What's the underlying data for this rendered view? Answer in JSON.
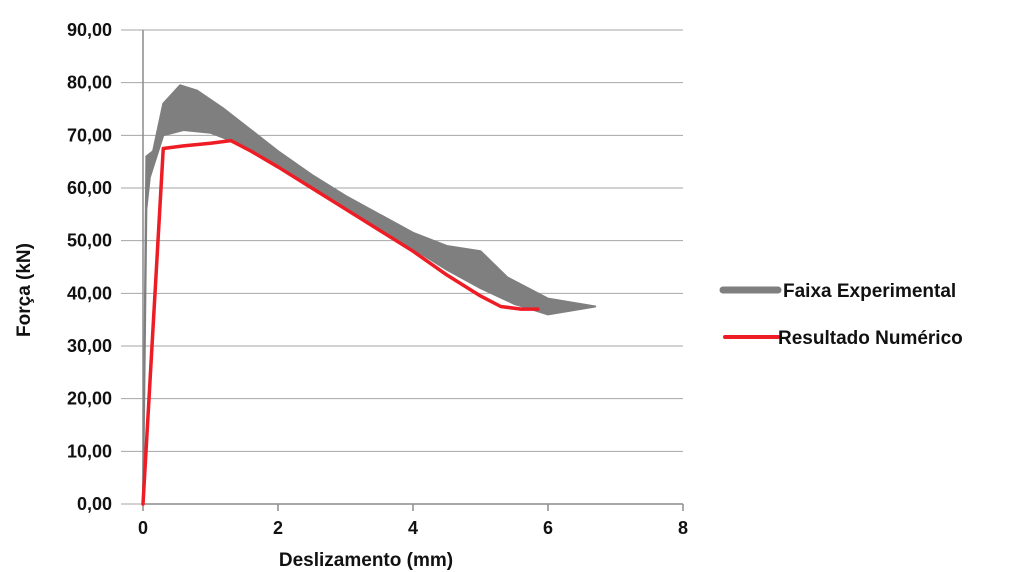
{
  "chart_data": {
    "type": "line",
    "title": "",
    "xlabel": "Deslizamento (mm)",
    "ylabel": "Força (kN)",
    "xlim": [
      0,
      8
    ],
    "ylim": [
      0,
      90
    ],
    "x_ticks": [
      "0",
      "2",
      "4",
      "6",
      "8"
    ],
    "y_ticks": [
      "0,00",
      "10,00",
      "20,00",
      "30,00",
      "40,00",
      "50,00",
      "60,00",
      "70,00",
      "80,00",
      "90,00"
    ],
    "grid": "horizontal",
    "legend_position": "right",
    "series": [
      {
        "name": "Faixa Experimental",
        "type": "band",
        "color": "#7f7f7f",
        "upper": [
          [
            0,
            0
          ],
          [
            0.05,
            66
          ],
          [
            0.15,
            67
          ],
          [
            0.3,
            76
          ],
          [
            0.55,
            79.5
          ],
          [
            0.8,
            78.5
          ],
          [
            1.2,
            75
          ],
          [
            1.6,
            71
          ],
          [
            2.0,
            67
          ],
          [
            2.5,
            62.5
          ],
          [
            3.0,
            58.5
          ],
          [
            3.5,
            55
          ],
          [
            4.0,
            51.5
          ],
          [
            4.5,
            49
          ],
          [
            5.0,
            48
          ],
          [
            5.4,
            43
          ],
          [
            6.0,
            39
          ],
          [
            6.7,
            37.5
          ]
        ],
        "lower": [
          [
            0,
            0
          ],
          [
            0.05,
            56
          ],
          [
            0.1,
            62
          ],
          [
            0.3,
            70
          ],
          [
            0.6,
            71
          ],
          [
            1.0,
            70.5
          ],
          [
            1.5,
            68
          ],
          [
            2.0,
            64
          ],
          [
            2.5,
            60
          ],
          [
            3.0,
            56
          ],
          [
            3.5,
            52
          ],
          [
            4.0,
            48.5
          ],
          [
            4.5,
            44.5
          ],
          [
            5.0,
            41
          ],
          [
            5.5,
            38
          ],
          [
            6.0,
            36
          ],
          [
            6.7,
            37.5
          ]
        ]
      },
      {
        "name": "Resultado Numérico",
        "type": "line",
        "color": "#ee1c25",
        "x": [
          0,
          0.3,
          0.6,
          1.0,
          1.3,
          1.6,
          2.0,
          2.5,
          3.0,
          3.5,
          4.0,
          4.5,
          5.0,
          5.3,
          5.6,
          5.85
        ],
        "y": [
          0,
          67.5,
          68,
          68.5,
          69,
          67,
          64,
          60,
          56,
          52,
          48,
          43.5,
          39.5,
          37.5,
          37,
          37
        ]
      }
    ]
  }
}
